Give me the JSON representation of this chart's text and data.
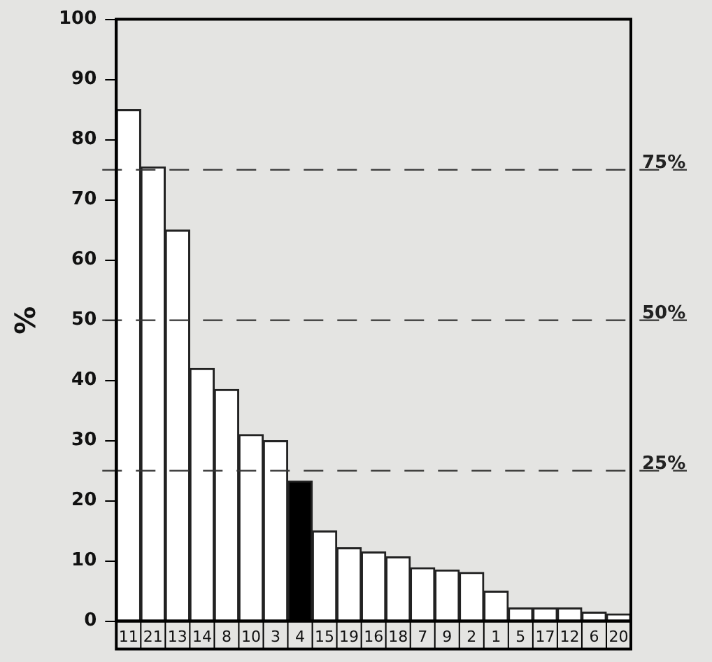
{
  "chart_data": {
    "type": "bar",
    "ylabel": "%",
    "categories": [
      "11",
      "21",
      "13",
      "14",
      "8",
      "10",
      "3",
      "4",
      "15",
      "19",
      "16",
      "18",
      "7",
      "9",
      "2",
      "1",
      "5",
      "17",
      "12",
      "6",
      "20"
    ],
    "values": [
      85,
      75.5,
      65,
      42,
      38.5,
      31,
      30,
      23.3,
      15,
      12.2,
      11.5,
      10.7,
      8.9,
      8.5,
      8.1,
      5,
      2.2,
      2.2,
      2.2,
      1.5,
      1.2
    ],
    "colors": [
      "#ffffff",
      "#ffffff",
      "#ffffff",
      "#ffffff",
      "#ffffff",
      "#ffffff",
      "#ffffff",
      "#000000",
      "#ffffff",
      "#ffffff",
      "#ffffff",
      "#ffffff",
      "#ffffff",
      "#ffffff",
      "#ffffff",
      "#ffffff",
      "#ffffff",
      "#ffffff",
      "#ffffff",
      "#ffffff",
      "#ffffff"
    ],
    "ylim": [
      0,
      100
    ],
    "yticks": [
      0,
      10,
      20,
      30,
      40,
      50,
      60,
      70,
      80,
      90,
      100
    ],
    "grid": false,
    "legend": false,
    "ref_lines": [
      {
        "axis": "y",
        "value": 75,
        "label": "75%",
        "line_style": "dashed",
        "color": "#333333"
      },
      {
        "axis": "y",
        "value": 50,
        "label": "50%",
        "line_style": "dashed",
        "color": "#333333"
      },
      {
        "axis": "y",
        "value": 25,
        "label": "25%",
        "line_style": "dashed",
        "color": "#333333"
      }
    ]
  }
}
